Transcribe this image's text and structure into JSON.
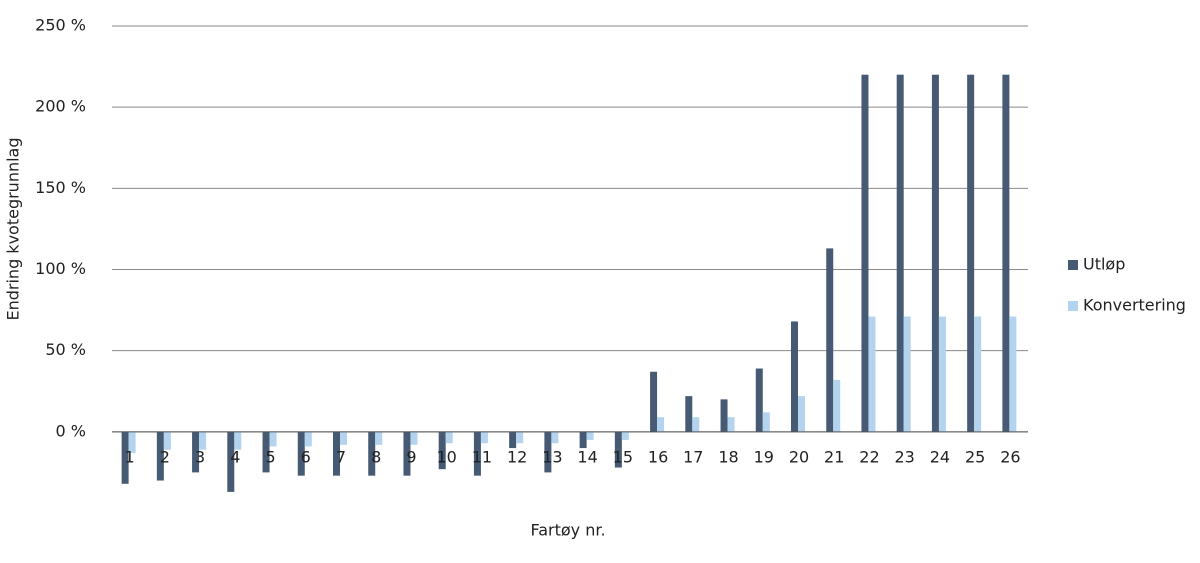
{
  "chart_data": {
    "type": "bar",
    "xlabel": "Fartøy nr.",
    "ylabel": "Endring kvotegrunnlag",
    "categories": [
      "1",
      "2",
      "3",
      "4",
      "5",
      "6",
      "7",
      "8",
      "9",
      "10",
      "11",
      "12",
      "13",
      "14",
      "15",
      "16",
      "17",
      "18",
      "19",
      "20",
      "21",
      "22",
      "23",
      "24",
      "25",
      "26"
    ],
    "series": [
      {
        "name": "Utløp",
        "color": "#465a73",
        "values": [
          -32,
          -30,
          -25,
          -37,
          -25,
          -27,
          -27,
          -27,
          -27,
          -23,
          -27,
          -10,
          -25,
          -10,
          -22,
          37,
          22,
          20,
          39,
          68,
          113,
          220,
          220,
          220,
          220,
          220
        ]
      },
      {
        "name": "Konvertering",
        "color": "#b3d3ef",
        "values": [
          -13,
          -11,
          -11,
          -11,
          -9,
          -9,
          -8,
          -8,
          -8,
          -7,
          -7,
          -7,
          -7,
          -5,
          -5,
          9,
          9,
          9,
          12,
          22,
          32,
          71,
          71,
          71,
          71,
          71
        ]
      }
    ],
    "ylim": [
      -50,
      250
    ],
    "yticks": [
      {
        "value": 0,
        "label": "0 %"
      },
      {
        "value": 50,
        "label": "50 %"
      },
      {
        "value": 100,
        "label": "100 %"
      },
      {
        "value": 150,
        "label": "150 %"
      },
      {
        "value": 200,
        "label": "200 %"
      },
      {
        "value": 250,
        "label": "250 %"
      }
    ],
    "grid": true,
    "legend": "right"
  }
}
